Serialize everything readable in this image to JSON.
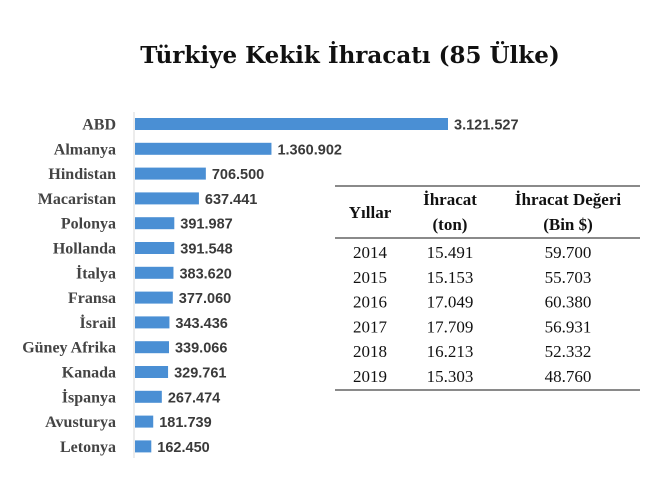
{
  "chart_data": {
    "type": "bar",
    "orientation": "horizontal",
    "title": "Türkiye Kekik İhracatı (85 Ülke)",
    "categories": [
      "ABD",
      "Almanya",
      "Hindistan",
      "Macaristan",
      "Polonya",
      "Hollanda",
      "İtalya",
      "Fransa",
      "İsrail",
      "Güney Afrika",
      "Kanada",
      "İspanya",
      "Avusturya",
      "Letonya"
    ],
    "values": [
      3121527,
      1360902,
      706500,
      637441,
      391987,
      391548,
      383620,
      377060,
      343436,
      339066,
      329761,
      267474,
      181739,
      162450
    ],
    "value_labels": [
      "3.121.527",
      "1.360.902",
      "706.500",
      "637.441",
      "391.987",
      "391.548",
      "383.620",
      "377.060",
      "343.436",
      "339.066",
      "329.761",
      "267.474",
      "181.739",
      "162.450"
    ],
    "bar_color": "#4a8fd4",
    "xlim": [
      0,
      3121527
    ],
    "grid": false
  },
  "table": {
    "headers": [
      [
        "Yıllar"
      ],
      [
        "İhracat",
        "(ton)"
      ],
      [
        "İhracat Değeri",
        "(Bin $)"
      ]
    ],
    "rows": [
      {
        "cells": [
          "2014",
          "15.491",
          "59.700"
        ],
        "highlight": false
      },
      {
        "cells": [
          "2015",
          "15.153",
          "55.703"
        ],
        "highlight": false
      },
      {
        "cells": [
          "2016",
          "17.049",
          "60.380"
        ],
        "highlight": true
      },
      {
        "cells": [
          "2017",
          "17.709",
          "56.931"
        ],
        "highlight": true
      },
      {
        "cells": [
          "2018",
          "16.213",
          "52.332"
        ],
        "highlight": false
      },
      {
        "cells": [
          "2019",
          "15.303",
          "48.760"
        ],
        "highlight": false
      }
    ],
    "highlight_color": "#c0282c"
  }
}
